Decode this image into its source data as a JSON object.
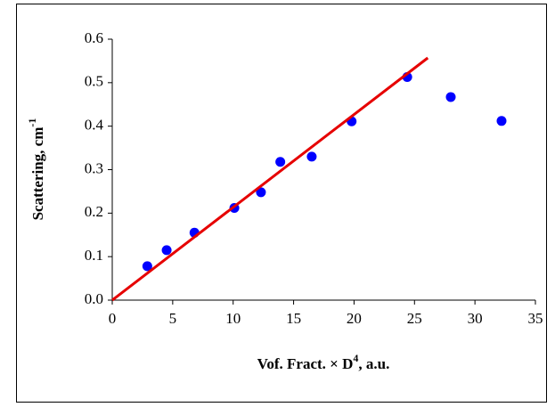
{
  "chart_data": {
    "type": "scatter",
    "x_label": [
      "Vof. Fract. × D",
      "4",
      ", a.u."
    ],
    "y_label": [
      "Scattering, cm",
      "-1"
    ],
    "xlim": [
      0,
      35
    ],
    "xticks": [
      0,
      5,
      10,
      15,
      20,
      25,
      30,
      35
    ],
    "ylim": [
      0,
      0.6
    ],
    "yticks": [
      {
        "value": 0,
        "label": "0.0"
      },
      0.1,
      0.2,
      0.3,
      0.4,
      0.5,
      0.6
    ],
    "grid": false,
    "series": [
      {
        "type": "scatter",
        "color": "#0000ff",
        "x": [
          2.9,
          4.5,
          6.8,
          10.1,
          12.3,
          13.9,
          16.5,
          19.8,
          24.4,
          28.0,
          32.2
        ],
        "values": [
          0.078,
          0.115,
          0.155,
          0.212,
          0.248,
          0.318,
          0.33,
          0.411,
          0.513,
          0.467,
          0.412
        ]
      },
      {
        "type": "line",
        "color": "#e60000",
        "x": [
          0,
          26.1
        ],
        "values": [
          0,
          0.557
        ]
      }
    ]
  }
}
